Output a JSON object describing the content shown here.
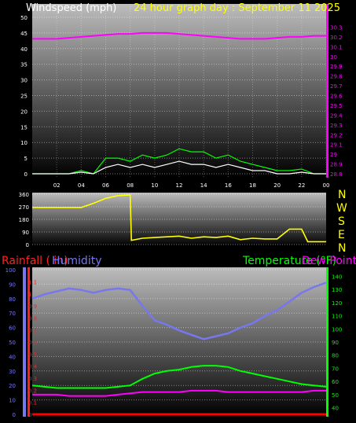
{
  "colors": {
    "windspeed": "#ffffff",
    "gust": "#00ff00",
    "pressure": "#ff00ff",
    "direction": "#ffff00",
    "rain_title": "#ff2020",
    "humidity": "#7777ee",
    "temperature": "#00ff00",
    "dewpoint": "#ff00ff",
    "rainfall": "#ff0000"
  },
  "chart_data": [
    {
      "type": "line",
      "title": "Windspeed (mph)   24 hour graph day : September 11 2025",
      "title_wind": "Windspeed (mph)",
      "title_graph": "24 hour graph day : September 11 2025",
      "x_tick_labels": [
        "02",
        "04",
        "06",
        "08",
        "10",
        "12",
        "14",
        "16",
        "18",
        "20",
        "22",
        "00"
      ],
      "ylim": [
        0,
        50
      ],
      "y_ticks": [
        "0",
        "5",
        "10",
        "15",
        "20",
        "25",
        "30",
        "35",
        "40",
        "45",
        "50"
      ],
      "y2lim": [
        28.8,
        30.4
      ],
      "y2_ticks": [
        "28.8",
        "28.9",
        "29",
        "29.1",
        "29.2",
        "29.3",
        "29.4",
        "29.5",
        "29.6",
        "29.7",
        "29.8",
        "29.9",
        "30",
        "30.1",
        "30.2",
        "30.3"
      ],
      "x_hours": [
        0,
        1,
        2,
        3,
        4,
        5,
        6,
        7,
        8,
        9,
        10,
        11,
        12,
        13,
        14,
        15,
        16,
        17,
        18,
        19,
        20,
        21,
        22,
        23,
        24
      ],
      "series": [
        {
          "name": "windspeed",
          "values": [
            0,
            0,
            0,
            0,
            0.5,
            0,
            2,
            3,
            2,
            3,
            2,
            3,
            4,
            3,
            3,
            2,
            3,
            2,
            1,
            1,
            0,
            0,
            0.5,
            0,
            0
          ]
        },
        {
          "name": "gust",
          "values": [
            0,
            0,
            0,
            0,
            1,
            0,
            5,
            5,
            4,
            6,
            5,
            6,
            8,
            7,
            7,
            5,
            6,
            4,
            3,
            2,
            1,
            1,
            1.5,
            0,
            0
          ]
        },
        {
          "name": "pressure",
          "values": [
            30.18,
            30.18,
            30.18,
            30.19,
            30.2,
            30.21,
            30.22,
            30.23,
            30.23,
            30.24,
            30.24,
            30.24,
            30.23,
            30.22,
            30.21,
            30.2,
            30.19,
            30.18,
            30.18,
            30.18,
            30.19,
            30.2,
            30.2,
            30.21,
            30.21
          ]
        }
      ]
    },
    {
      "type": "line",
      "title": "",
      "ylim": [
        0,
        360
      ],
      "y_ticks": [
        "0",
        "90",
        "180",
        "270",
        "360"
      ],
      "compass_labels": [
        "N",
        "W",
        "S",
        "E",
        "N"
      ],
      "x_hours": [
        0,
        1,
        2,
        3,
        4,
        5,
        6,
        7,
        8,
        8.1,
        9,
        10,
        11,
        12,
        13,
        14,
        15,
        16,
        17,
        18,
        19,
        20,
        21,
        22,
        22.5,
        24
      ],
      "series": [
        {
          "name": "wind direction",
          "values": [
            265,
            265,
            265,
            265,
            265,
            295,
            330,
            350,
            355,
            30,
            45,
            50,
            55,
            60,
            45,
            55,
            50,
            60,
            35,
            45,
            40,
            40,
            110,
            110,
            20,
            20
          ]
        }
      ]
    },
    {
      "type": "line",
      "title": "Rainfall ( in)   Humidity   Temperature (°F)   Dew Point",
      "title_rain": "Rainfall ( in)",
      "title_hum": "Humidity",
      "title_temp": "Temperature (°F)",
      "title_dew": "Dew Point",
      "humidity_ticks": [
        "0",
        "10",
        "20",
        "30",
        "40",
        "50",
        "60",
        "70",
        "80",
        "90",
        "100"
      ],
      "rain_ticks": [
        "0",
        "0.1",
        "0.2",
        "0.3",
        "0.4",
        "0.5",
        "0.6",
        "0.7",
        "0.8",
        "0.9",
        "1",
        "1.1"
      ],
      "temp_ticks": [
        "40",
        "50",
        "60",
        "70",
        "80",
        "90",
        "100",
        "110",
        "120",
        "130",
        "140"
      ],
      "humidity_lim": [
        0,
        100
      ],
      "rain_lim": [
        0,
        1.2
      ],
      "temp_lim": [
        35,
        145
      ],
      "x_hours": [
        0,
        1,
        2,
        3,
        4,
        5,
        6,
        7,
        8,
        9,
        10,
        11,
        12,
        13,
        14,
        15,
        16,
        17,
        18,
        19,
        20,
        21,
        22,
        23,
        24
      ],
      "series": [
        {
          "name": "humidity",
          "values": [
            80,
            83,
            85,
            87,
            86,
            84,
            86,
            87,
            86,
            75,
            65,
            62,
            58,
            55,
            52,
            54,
            56,
            60,
            63,
            68,
            72,
            78,
            84,
            88,
            91
          ]
        },
        {
          "name": "temperature",
          "values": [
            57,
            56,
            55,
            55,
            55,
            55,
            55,
            56,
            57,
            62,
            66,
            68,
            69,
            71,
            72,
            72,
            71,
            68,
            66,
            64,
            62,
            60,
            58,
            57,
            56
          ]
        },
        {
          "name": "dew point",
          "values": [
            50,
            50,
            50,
            49,
            49,
            49,
            49,
            50,
            51,
            52,
            52,
            52,
            52,
            53,
            53,
            53,
            52,
            52,
            52,
            52,
            52,
            52,
            52,
            53,
            53
          ]
        },
        {
          "name": "rainfall",
          "values": [
            0,
            0,
            0,
            0,
            0,
            0,
            0,
            0,
            0,
            0,
            0,
            0,
            0,
            0,
            0,
            0,
            0,
            0,
            0,
            0,
            0,
            0,
            0,
            0,
            0
          ]
        }
      ]
    }
  ]
}
